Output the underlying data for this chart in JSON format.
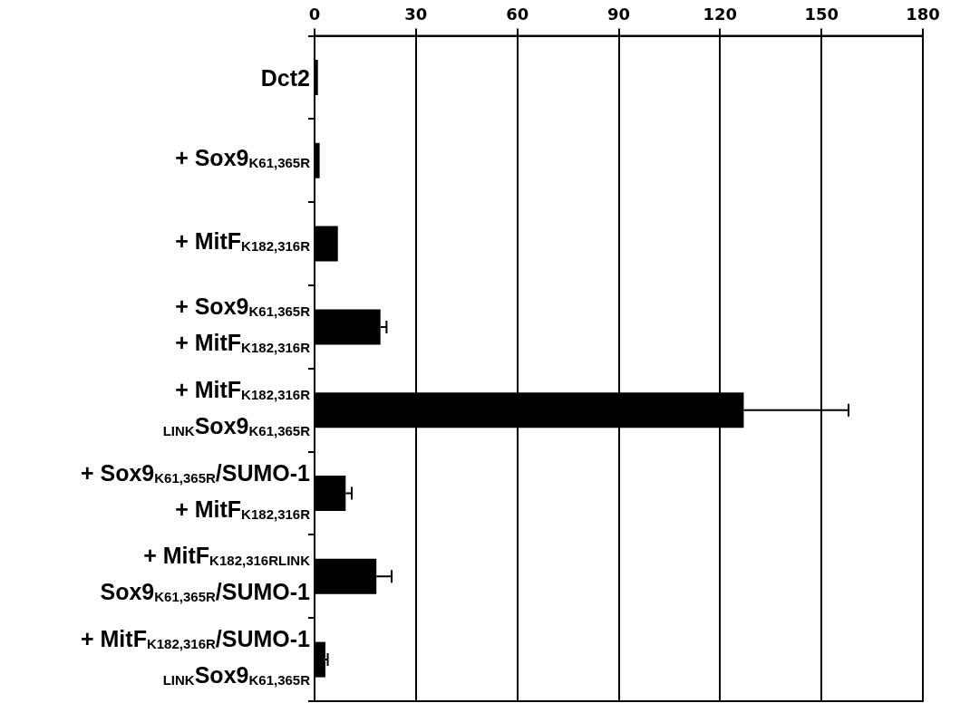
{
  "chart_data": {
    "type": "bar",
    "orientation": "horizontal",
    "categories": [
      "Dct2",
      "+ Sox9$_{K61,365R}$",
      "+ MitF$_{K182,316R}$",
      "+ Sox9$_{K61,365R}$\n+ MitF$_{K182,316R}$",
      "+ MitF$_{K182,316R}$\n$_{LINK}$Sox9$_{K61,365R}$",
      "+ Sox9$_{K61,365R}$/SUMO-1\n+ MitF$_{K182,316R}$",
      "+ MitF$_{K182,316RLINK}$\nSox9$_{K61,365R}$/SUMO-1",
      "+ MitF$_{K182,316R}$/SUMO-1\n$_{LINK}$Sox9$_{K61,365R}$"
    ],
    "values": [
      1,
      1.5,
      6.9,
      19.5,
      127,
      9.2,
      18.3,
      3.2
    ],
    "errors": [
      null,
      null,
      null,
      1.8,
      31,
      1.8,
      4.5,
      0.7
    ],
    "color": "#000000",
    "xlim": [
      0,
      180
    ],
    "xticks": [
      0,
      30,
      60,
      90,
      120,
      150,
      180
    ],
    "grid": "x",
    "legend": false
  }
}
